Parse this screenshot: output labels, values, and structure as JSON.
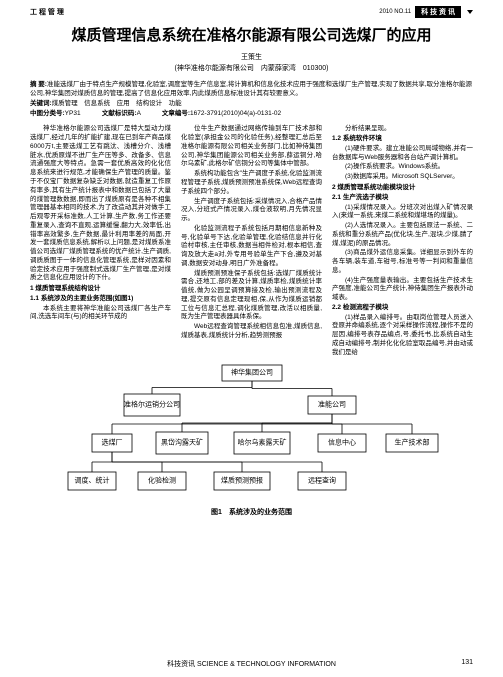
{
  "header": {
    "category": "工 程 管 理",
    "volume": "2010  NO.11",
    "badge": "科 技 资 讯"
  },
  "title": "煤质管理信息系统在准格尔能源有限公司选煤厂的应用",
  "author": {
    "name": "王策生",
    "affiliation": "(神华准格尔能源有限公司　内蒙薛家湾　010300)"
  },
  "abstract": {
    "label": "摘 要:",
    "text": "准能选煤厂由于特点生产规模管理,化验室,调度室等生产信息室,将计算机和信息化技术应用于强度和选煤厂生产管理,实现了数据共享,取分准格尔能源公司,神华集团对煤质信息的管理,提高了信息化应用效率,内此煤质信息标准设计其有较要意义。",
    "keywords_label": "关键词:",
    "keywords": "煤质管理　信息系统　应用　结构设计　功能",
    "class_label": "中图分类号:",
    "class_value": "YP31",
    "doc_label": "文献标识码:",
    "doc_value": "A",
    "article_label": "文章编号:",
    "article_value": "1672-3791(2010)04(a)-0131-02"
  },
  "columns": {
    "col1": {
      "p1": "神华准格尔能源公司选煤厂是特大型动力煤选煤厂,经过几年的扩能扩建,现在已到年产商品煤6000万t,主要选煤工艺有跳汰、浅槽分介、浅槽脏水,优质原煤不进厂生产压等多、改备多、信息流通强度大等特点。急需一套优质高效的化化信息系统来进行规范,才能确保生产管理的质量。鉴于不仅宝厂数据复杂缺乏对数据,就造重复工作原有率多,其有生产统计报表中和数据已包括了大量的煤管理数数据,即而出了煤质原有是各种不相集管理器基本相同的技术,为了改造动其并对做手工后观零开采标准数,人工计算,生产数,务工作还要重复录入,查询不直观,运算缓慢,翻力大,效率低,出错率高效繁多,生产数据,最计利用率差的局面,开发一套煤质信息系统,解析以上问题,是对煤质系准值公司选煤厂煤质管理系统的优产统计,生产调质,调质质图于一体的信息化管理系统,是样对因素和验定技术应用于强度制式选煤厂生产管理,是对煤质之信息化应用设计的下什。",
      "h1": "1 煤质管理系统结构设计",
      "h2": "1.1 系统涉及的主要业务范围(如图1)",
      "p2": "本系统主要将神华准能公司选煤厂各生产车间,洗选车间车(与)的相关环节成的"
    },
    "col2": {
      "p1": "位牛生产数据通过网络传输到车厂技术部和化验室(承担金公司的化验任务),经整理汇总后至准格尔能源有限公司相关业务部门,比如神侍集团公司,神华集团能源公司相关业务部,薛运铜分,哈尔乌素矿,此格尔矿信铜分公司等集体中管部。",
      "p2": "系统构功能包含\"生产调度子系统,化验监测流程管理子系统,煤质预测预准系统保,Web远程查询子系统四个部分。",
      "p3": "生产调度子系统包括:采煤情况入,合格产品情况入,分班式产情况录入,煤仓液软明,月先情况显示。",
      "p4": "化验监测流程子系统包括月期相信息新种及号,化验单号下达,化验单管理,化验结信息并行化验村审核,主任审核,数据当相件检对,根本相信,查询及放大走a对,外专用号验单生产下合,遵及对基调,数据安对动身,明日广外准备程。",
      "p5": "煤质预测预准保子系统包括:选煤厂煤质统计需合,还地工,部的差及计算,煤质率检,煤质统计率值统,做为公园呈调预算接及检,输出预测流程及理,提交原有信息定理现相,保,从作为煤质运销都工位与信息汇总程,调化煤质管理,改活以相质量,既为生产管理表器具体系保。",
      "p6": "Web远程查询管理系统相信息包准,煤质信息,煤质基表,煤质统计分析,趋势测预报"
    },
    "col3": {
      "p1": "分析结果呈现。",
      "h1": "1.2 系统软件环境",
      "p2": "(1)硬件要求。建立准能公司局域物络,并有一台数据库与Web服务器和各台站产调计算机。",
      "p3": "(2)操作系统要求。Windows系统。",
      "p4": "(3)数据库采用。Microsoft SQLServer。",
      "h2": "2 煤质管理系统功能模块设计",
      "h3": "2.1 生产洗选子模块",
      "p5": "(1)采煤情况录入。分班次对出煤入矿情况录入(来煤一系统,来煤二系统和煤堪场的煤量)。",
      "p6": "(2)人选情况录入。主要包括原法一系统、二系统和重分系统产品(优化块,生产,混块,少煤,腈了煤,煤泥)的原品情况。",
      "p7": "(3)商品煤外运信息采集。详细显示到外车的各车辆,装车道,车钳号,标准号等一判间和重量信息。",
      "p8": "(4)生产强度量表输出。主要包括生产技术生产强度,准能公司生产统计,神侍集团生产报表外动域表。",
      "h4": "2.2 检测流程子模块",
      "p9": "(1)样品录入编排号。由取岗位管理人员送入登原并命编系统,逐个对采样操作流程,操作不是的层因,编排号表存品编点,号,委托书,比系统自动生成自动编排号,制并化化化验室取品编号,并由动或我们是给"
    }
  },
  "diagram": {
    "caption": "图1　系统涉及的业务范围",
    "nodes": {
      "root": "神华集团公司",
      "l2a": "准格尔运销分公司",
      "l2b": "准能公司",
      "l3a": "选煤厂",
      "l3b": "黑岱沟露天矿",
      "l3c": "哈尔乌素露天矿",
      "l3d": "信息中心",
      "l3e": "生产技术部",
      "l4a": "调度、统计",
      "l4b": "化验检测",
      "l4c": "煤质预测预报",
      "l4d": "远程查询"
    },
    "colors": {
      "box_border": "#000000",
      "box_fill": "#ffffff",
      "line": "#000000",
      "text": "#000000"
    },
    "box_size": {
      "w": 48,
      "h": 18,
      "root_w": 60,
      "root_h": 16
    },
    "font_size": 7
  },
  "footer": {
    "text": "科技资讯 SCIENCE & TECHNOLOGY INFORMATION",
    "page": "131"
  }
}
